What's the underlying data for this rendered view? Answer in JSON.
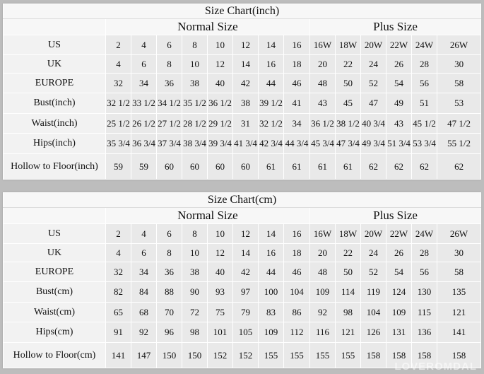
{
  "watermark": "LOVEROMDAL",
  "tables": [
    {
      "title": "Size Chart(inch)",
      "normal_label": "Normal Size",
      "plus_label": "Plus Size",
      "rows": [
        {
          "label": "US",
          "values": [
            "2",
            "4",
            "6",
            "8",
            "10",
            "12",
            "14",
            "16",
            "16W",
            "18W",
            "20W",
            "22W",
            "24W",
            "26W"
          ]
        },
        {
          "label": "UK",
          "values": [
            "4",
            "6",
            "8",
            "10",
            "12",
            "14",
            "16",
            "18",
            "20",
            "22",
            "24",
            "26",
            "28",
            "30"
          ]
        },
        {
          "label": "EUROPE",
          "values": [
            "32",
            "34",
            "36",
            "38",
            "40",
            "42",
            "44",
            "46",
            "48",
            "50",
            "52",
            "54",
            "56",
            "58"
          ]
        },
        {
          "label": "Bust(inch)",
          "values": [
            "32 1/2",
            "33 1/2",
            "34 1/2",
            "35 1/2",
            "36 1/2",
            "38",
            "39 1/2",
            "41",
            "43",
            "45",
            "47",
            "49",
            "51",
            "53"
          ]
        },
        {
          "label": "Waist(inch)",
          "values": [
            "25 1/2",
            "26 1/2",
            "27 1/2",
            "28 1/2",
            "29 1/2",
            "31",
            "32 1/2",
            "34",
            "36 1/2",
            "38 1/2",
            "40 3/4",
            "43",
            "45 1/2",
            "47 1/2"
          ]
        },
        {
          "label": "Hips(inch)",
          "values": [
            "35 3/4",
            "36 3/4",
            "37 3/4",
            "38 3/4",
            "39 3/4",
            "41 3/4",
            "42 3/4",
            "44 3/4",
            "45 3/4",
            "47 3/4",
            "49 3/4",
            "51 3/4",
            "53 3/4",
            "55 1/2"
          ]
        },
        {
          "label": "Hollow to Floor(inch)",
          "values": [
            "59",
            "59",
            "60",
            "60",
            "60",
            "60",
            "61",
            "61",
            "61",
            "61",
            "62",
            "62",
            "62",
            "62"
          ]
        }
      ]
    },
    {
      "title": "Size Chart(cm)",
      "normal_label": "Normal Size",
      "plus_label": "Plus Size",
      "rows": [
        {
          "label": "US",
          "values": [
            "2",
            "4",
            "6",
            "8",
            "10",
            "12",
            "14",
            "16",
            "16W",
            "18W",
            "20W",
            "22W",
            "24W",
            "26W"
          ]
        },
        {
          "label": "UK",
          "values": [
            "4",
            "6",
            "8",
            "10",
            "12",
            "14",
            "16",
            "18",
            "20",
            "22",
            "24",
            "26",
            "28",
            "30"
          ]
        },
        {
          "label": "EUROPE",
          "values": [
            "32",
            "34",
            "36",
            "38",
            "40",
            "42",
            "44",
            "46",
            "48",
            "50",
            "52",
            "54",
            "56",
            "58"
          ]
        },
        {
          "label": "Bust(cm)",
          "values": [
            "82",
            "84",
            "88",
            "90",
            "93",
            "97",
            "100",
            "104",
            "109",
            "114",
            "119",
            "124",
            "130",
            "135"
          ]
        },
        {
          "label": "Waist(cm)",
          "values": [
            "65",
            "68",
            "70",
            "72",
            "75",
            "79",
            "83",
            "86",
            "92",
            "98",
            "104",
            "109",
            "115",
            "121"
          ]
        },
        {
          "label": "Hips(cm)",
          "values": [
            "91",
            "92",
            "96",
            "98",
            "101",
            "105",
            "109",
            "112",
            "116",
            "121",
            "126",
            "131",
            "136",
            "141"
          ]
        },
        {
          "label": "Hollow to Floor(cm)",
          "values": [
            "141",
            "147",
            "150",
            "150",
            "152",
            "152",
            "155",
            "155",
            "155",
            "155",
            "158",
            "158",
            "158",
            "158"
          ]
        }
      ]
    }
  ]
}
